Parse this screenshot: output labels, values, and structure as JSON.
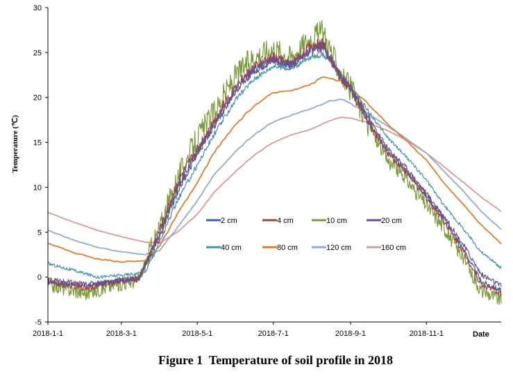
{
  "chart_data": {
    "type": "line",
    "title": "",
    "caption": "Figure 1  Temperature of soil profile in 2018",
    "xlabel": "Date",
    "ylabel": "Temperature (℃)",
    "ylim": [
      -5,
      30
    ],
    "yticks": [
      -5,
      0,
      5,
      10,
      15,
      20,
      25,
      30
    ],
    "xlim": [
      "2018-01-01",
      "2018-12-31"
    ],
    "xticks": [
      {
        "date": "2018-01-01",
        "label": "2018-1-1"
      },
      {
        "date": "2018-03-01",
        "label": "2018-3-1"
      },
      {
        "date": "2018-05-01",
        "label": "2018-5-1"
      },
      {
        "date": "2018-07-01",
        "label": "2018-7-1"
      },
      {
        "date": "2018-09-01",
        "label": "2018-9-1"
      },
      {
        "date": "2018-11-01",
        "label": "2018-11-1"
      }
    ],
    "grid": false,
    "legend_position": "center-right",
    "series": [
      {
        "name": "2 cm",
        "color": "#3a63a6",
        "noise": 0.5,
        "points": [
          [
            "2018-01-01",
            -0.5
          ],
          [
            "2018-02-01",
            -1.0
          ],
          [
            "2018-02-20",
            -0.5
          ],
          [
            "2018-03-15",
            -0.2
          ],
          [
            "2018-04-01",
            5
          ],
          [
            "2018-04-15",
            10
          ],
          [
            "2018-05-01",
            14
          ],
          [
            "2018-05-15",
            17
          ],
          [
            "2018-06-01",
            21
          ],
          [
            "2018-06-15",
            23
          ],
          [
            "2018-07-01",
            24.2
          ],
          [
            "2018-07-15",
            23.5
          ],
          [
            "2018-08-01",
            25.5
          ],
          [
            "2018-08-10",
            25.8
          ],
          [
            "2018-08-25",
            22
          ],
          [
            "2018-09-01",
            21
          ],
          [
            "2018-09-15",
            17.5
          ],
          [
            "2018-10-01",
            14
          ],
          [
            "2018-10-15",
            12
          ],
          [
            "2018-11-01",
            9
          ],
          [
            "2018-11-15",
            6.5
          ],
          [
            "2018-12-01",
            3
          ],
          [
            "2018-12-15",
            -0.5
          ],
          [
            "2018-12-31",
            -1.5
          ]
        ]
      },
      {
        "name": "4 cm",
        "color": "#a0413b",
        "noise": 0.6,
        "points": [
          [
            "2018-01-01",
            -0.6
          ],
          [
            "2018-02-01",
            -1.2
          ],
          [
            "2018-02-20",
            -0.6
          ],
          [
            "2018-03-15",
            -0.2
          ],
          [
            "2018-04-01",
            5.2
          ],
          [
            "2018-04-15",
            10.5
          ],
          [
            "2018-05-01",
            14.3
          ],
          [
            "2018-05-15",
            17.5
          ],
          [
            "2018-06-01",
            21.3
          ],
          [
            "2018-06-15",
            23.3
          ],
          [
            "2018-07-01",
            24.5
          ],
          [
            "2018-07-15",
            23.7
          ],
          [
            "2018-08-01",
            25.8
          ],
          [
            "2018-08-10",
            26
          ],
          [
            "2018-08-25",
            22
          ],
          [
            "2018-09-01",
            21
          ],
          [
            "2018-09-15",
            17.3
          ],
          [
            "2018-10-01",
            13.8
          ],
          [
            "2018-10-15",
            11.8
          ],
          [
            "2018-11-01",
            8.8
          ],
          [
            "2018-11-15",
            6.3
          ],
          [
            "2018-12-01",
            2.8
          ],
          [
            "2018-12-15",
            -0.8
          ],
          [
            "2018-12-31",
            -1.8
          ]
        ]
      },
      {
        "name": "10 cm",
        "color": "#7b9a3c",
        "noise": 1.4,
        "points": [
          [
            "2018-01-01",
            -0.8
          ],
          [
            "2018-02-01",
            -1.8
          ],
          [
            "2018-02-20",
            -1.0
          ],
          [
            "2018-03-15",
            -0.3
          ],
          [
            "2018-04-01",
            5.5
          ],
          [
            "2018-04-15",
            11
          ],
          [
            "2018-05-01",
            15.5
          ],
          [
            "2018-05-15",
            18.5
          ],
          [
            "2018-06-01",
            22.5
          ],
          [
            "2018-06-15",
            24.5
          ],
          [
            "2018-07-01",
            25.5
          ],
          [
            "2018-07-15",
            24.5
          ],
          [
            "2018-08-01",
            26.8
          ],
          [
            "2018-08-10",
            27.3
          ],
          [
            "2018-08-25",
            22.3
          ],
          [
            "2018-09-01",
            21
          ],
          [
            "2018-09-15",
            17
          ],
          [
            "2018-10-01",
            13
          ],
          [
            "2018-10-15",
            11
          ],
          [
            "2018-11-01",
            8
          ],
          [
            "2018-11-15",
            5.5
          ],
          [
            "2018-12-01",
            2
          ],
          [
            "2018-12-15",
            -1.5
          ],
          [
            "2018-12-31",
            -2.5
          ]
        ]
      },
      {
        "name": "20 cm",
        "color": "#6a4f94",
        "noise": 0.5,
        "points": [
          [
            "2018-01-01",
            -0.3
          ],
          [
            "2018-02-01",
            -0.8
          ],
          [
            "2018-02-20",
            -0.5
          ],
          [
            "2018-03-15",
            -0.1
          ],
          [
            "2018-04-01",
            4.5
          ],
          [
            "2018-04-15",
            9.5
          ],
          [
            "2018-05-01",
            13.8
          ],
          [
            "2018-05-15",
            17
          ],
          [
            "2018-06-01",
            20.8
          ],
          [
            "2018-06-15",
            23
          ],
          [
            "2018-07-01",
            24.3
          ],
          [
            "2018-07-15",
            23.6
          ],
          [
            "2018-08-01",
            25.2
          ],
          [
            "2018-08-10",
            25.5
          ],
          [
            "2018-08-25",
            22.3
          ],
          [
            "2018-09-01",
            21
          ],
          [
            "2018-09-15",
            17.8
          ],
          [
            "2018-10-01",
            14.3
          ],
          [
            "2018-10-15",
            12.3
          ],
          [
            "2018-11-01",
            9.3
          ],
          [
            "2018-11-15",
            6.8
          ],
          [
            "2018-12-01",
            3.5
          ],
          [
            "2018-12-15",
            0.3
          ],
          [
            "2018-12-31",
            -1
          ]
        ]
      },
      {
        "name": "40 cm",
        "color": "#3f94a8",
        "noise": 0.3,
        "points": [
          [
            "2018-01-01",
            1.5
          ],
          [
            "2018-01-20",
            0.8
          ],
          [
            "2018-02-10",
            0
          ],
          [
            "2018-03-01",
            0.2
          ],
          [
            "2018-03-20",
            0.5
          ],
          [
            "2018-04-01",
            4
          ],
          [
            "2018-04-15",
            8.5
          ],
          [
            "2018-05-01",
            12.5
          ],
          [
            "2018-05-15",
            16
          ],
          [
            "2018-06-01",
            19.8
          ],
          [
            "2018-06-15",
            22
          ],
          [
            "2018-07-01",
            23.5
          ],
          [
            "2018-07-15",
            23.2
          ],
          [
            "2018-08-01",
            24.5
          ],
          [
            "2018-08-10",
            24.8
          ],
          [
            "2018-08-25",
            22.5
          ],
          [
            "2018-09-01",
            21.2
          ],
          [
            "2018-09-15",
            18.5
          ],
          [
            "2018-10-01",
            15.5
          ],
          [
            "2018-10-15",
            13.5
          ],
          [
            "2018-11-01",
            10.8
          ],
          [
            "2018-11-15",
            8
          ],
          [
            "2018-12-01",
            5.3
          ],
          [
            "2018-12-15",
            2.8
          ],
          [
            "2018-12-31",
            1
          ]
        ]
      },
      {
        "name": "80 cm",
        "color": "#e07b2c",
        "noise": 0.1,
        "points": [
          [
            "2018-01-01",
            3.8
          ],
          [
            "2018-01-20",
            2.8
          ],
          [
            "2018-02-10",
            2.0
          ],
          [
            "2018-03-01",
            1.7
          ],
          [
            "2018-03-20",
            1.8
          ],
          [
            "2018-04-01",
            3.5
          ],
          [
            "2018-04-15",
            7
          ],
          [
            "2018-05-01",
            10.5
          ],
          [
            "2018-05-15",
            14
          ],
          [
            "2018-06-01",
            17
          ],
          [
            "2018-06-15",
            19
          ],
          [
            "2018-07-01",
            20.5
          ],
          [
            "2018-07-15",
            20.8
          ],
          [
            "2018-08-01",
            21.5
          ],
          [
            "2018-08-10",
            22.3
          ],
          [
            "2018-08-25",
            21.8
          ],
          [
            "2018-09-01",
            21
          ],
          [
            "2018-09-15",
            19.3
          ],
          [
            "2018-10-01",
            17
          ],
          [
            "2018-10-15",
            15.3
          ],
          [
            "2018-11-01",
            13
          ],
          [
            "2018-11-15",
            10.5
          ],
          [
            "2018-12-01",
            8
          ],
          [
            "2018-12-15",
            5.8
          ],
          [
            "2018-12-31",
            3.7
          ]
        ]
      },
      {
        "name": "120 cm",
        "color": "#93a9cf",
        "noise": 0.06,
        "points": [
          [
            "2018-01-01",
            5.2
          ],
          [
            "2018-01-20",
            4.2
          ],
          [
            "2018-02-10",
            3.3
          ],
          [
            "2018-03-01",
            2.8
          ],
          [
            "2018-03-20",
            2.5
          ],
          [
            "2018-04-01",
            3
          ],
          [
            "2018-04-15",
            5.5
          ],
          [
            "2018-05-01",
            8.5
          ],
          [
            "2018-05-15",
            11.5
          ],
          [
            "2018-06-01",
            14
          ],
          [
            "2018-06-15",
            15.8
          ],
          [
            "2018-07-01",
            17.3
          ],
          [
            "2018-07-15",
            18
          ],
          [
            "2018-08-01",
            18.8
          ],
          [
            "2018-08-15",
            19.6
          ],
          [
            "2018-08-25",
            19.8
          ],
          [
            "2018-09-01",
            19.3
          ],
          [
            "2018-09-15",
            18.2
          ],
          [
            "2018-10-01",
            16.8
          ],
          [
            "2018-10-15",
            15.5
          ],
          [
            "2018-11-01",
            13.8
          ],
          [
            "2018-11-15",
            11.8
          ],
          [
            "2018-12-01",
            9.5
          ],
          [
            "2018-12-15",
            7.3
          ],
          [
            "2018-12-31",
            5.3
          ]
        ]
      },
      {
        "name": "160 cm",
        "color": "#d79a96",
        "noise": 0.03,
        "points": [
          [
            "2018-01-01",
            7.2
          ],
          [
            "2018-01-20",
            6.2
          ],
          [
            "2018-02-10",
            5.2
          ],
          [
            "2018-03-01",
            4.5
          ],
          [
            "2018-03-20",
            3.9
          ],
          [
            "2018-04-01",
            3.8
          ],
          [
            "2018-04-15",
            5
          ],
          [
            "2018-05-01",
            7
          ],
          [
            "2018-05-15",
            9.5
          ],
          [
            "2018-06-01",
            11.8
          ],
          [
            "2018-06-15",
            13.5
          ],
          [
            "2018-07-01",
            15
          ],
          [
            "2018-07-15",
            15.8
          ],
          [
            "2018-08-01",
            16.5
          ],
          [
            "2018-08-15",
            17.4
          ],
          [
            "2018-08-25",
            17.8
          ],
          [
            "2018-09-01",
            17.7
          ],
          [
            "2018-09-15",
            17.2
          ],
          [
            "2018-10-01",
            16.3
          ],
          [
            "2018-10-15",
            15.3
          ],
          [
            "2018-11-01",
            13.8
          ],
          [
            "2018-11-15",
            12.3
          ],
          [
            "2018-12-01",
            10.5
          ],
          [
            "2018-12-15",
            8.9
          ],
          [
            "2018-12-31",
            7.3
          ]
        ]
      }
    ]
  }
}
